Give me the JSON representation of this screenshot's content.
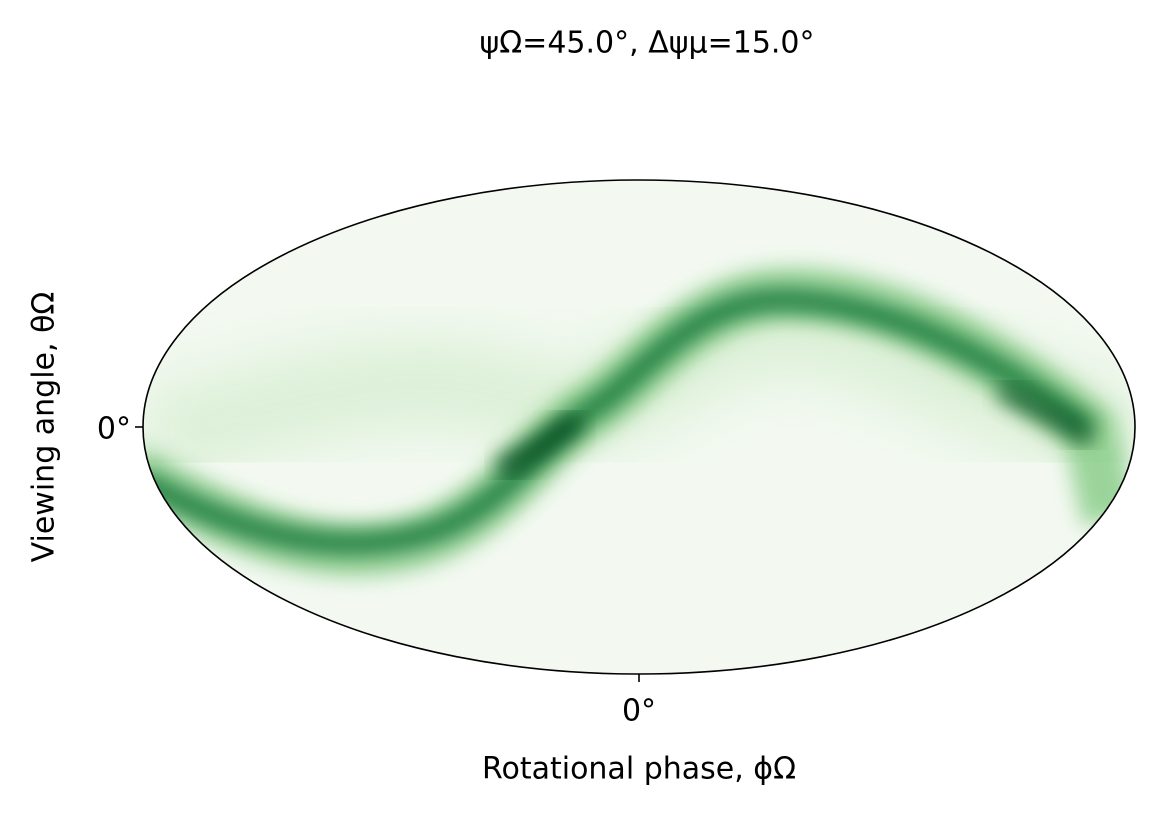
{
  "chart_data": {
    "type": "sky-density",
    "title": "ψΩ=45.0°, Δψμ=15.0°",
    "x_label": "Rotational phase, ϕΩ",
    "y_label": "Viewing angle, θΩ",
    "projection": "hammer",
    "xlim": [
      -180,
      180
    ],
    "ylim": [
      -90,
      90
    ],
    "xticks": [
      {
        "value": 0,
        "label": "0°"
      }
    ],
    "yticks": [
      {
        "value": 0,
        "label": "0°"
      }
    ],
    "color": "#00682a"
  }
}
